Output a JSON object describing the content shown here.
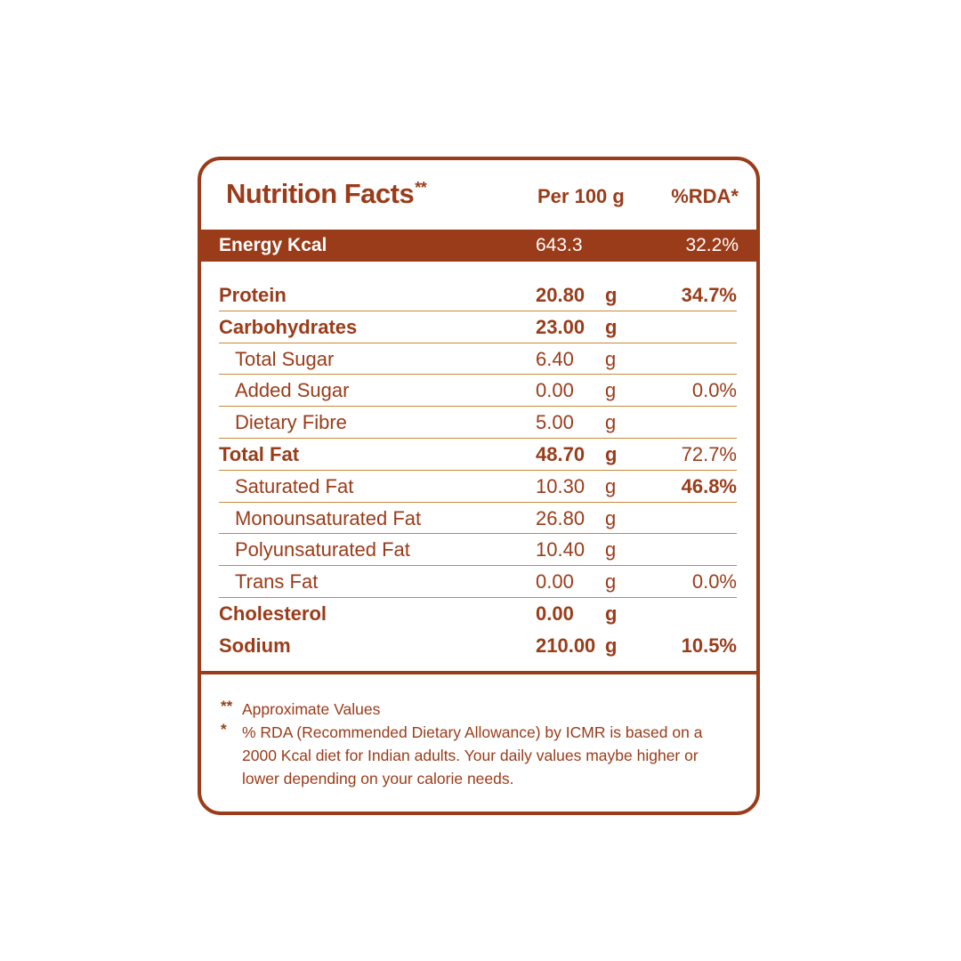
{
  "header": {
    "title": "Nutrition Facts",
    "title_mark": "**",
    "col_per": "Per 100 g",
    "col_rda": "%RDA*"
  },
  "energy": {
    "label": "Energy Kcal",
    "value": "643.3",
    "rda": "32.2%"
  },
  "rows": [
    {
      "label": "Protein",
      "value": "20.80",
      "unit": "g",
      "rda": "34.7%"
    },
    {
      "label": "Carbohydrates",
      "value": "23.00",
      "unit": "g",
      "rda": ""
    },
    {
      "label": "Total Sugar",
      "value": "6.40",
      "unit": "g",
      "rda": ""
    },
    {
      "label": "Added Sugar",
      "value": "0.00",
      "unit": "g",
      "rda": "0.0%"
    },
    {
      "label": "Dietary Fibre",
      "value": "5.00",
      "unit": "g",
      "rda": ""
    },
    {
      "label": "Total Fat",
      "value": "48.70",
      "unit": "g",
      "rda": "72.7%"
    },
    {
      "label": "Saturated Fat",
      "value": "10.30",
      "unit": "g",
      "rda": "46.8%"
    },
    {
      "label": "Monounsaturated Fat",
      "value": "26.80",
      "unit": "g",
      "rda": ""
    },
    {
      "label": "Polyunsaturated Fat",
      "value": "10.40",
      "unit": "g",
      "rda": ""
    },
    {
      "label": "Trans Fat",
      "value": "0.00",
      "unit": "g",
      "rda": "0.0%"
    },
    {
      "label": "Cholesterol",
      "value": "0.00",
      "unit": "g",
      "rda": ""
    },
    {
      "label": "Sodium",
      "value": "210.00",
      "unit": "g",
      "rda": "10.5%"
    }
  ],
  "notes": [
    {
      "mark": "**",
      "text": "Approximate Values"
    },
    {
      "mark": "*",
      "text": "% RDA (Recommended Dietary Allowance) by ICMR is based on a 2000 Kcal diet for Indian adults. Your daily values maybe higher or lower depending on your calorie needs."
    }
  ],
  "colors": {
    "brand": "#9a3c1a",
    "rule": "#c9893a",
    "background": "#ffffff"
  }
}
